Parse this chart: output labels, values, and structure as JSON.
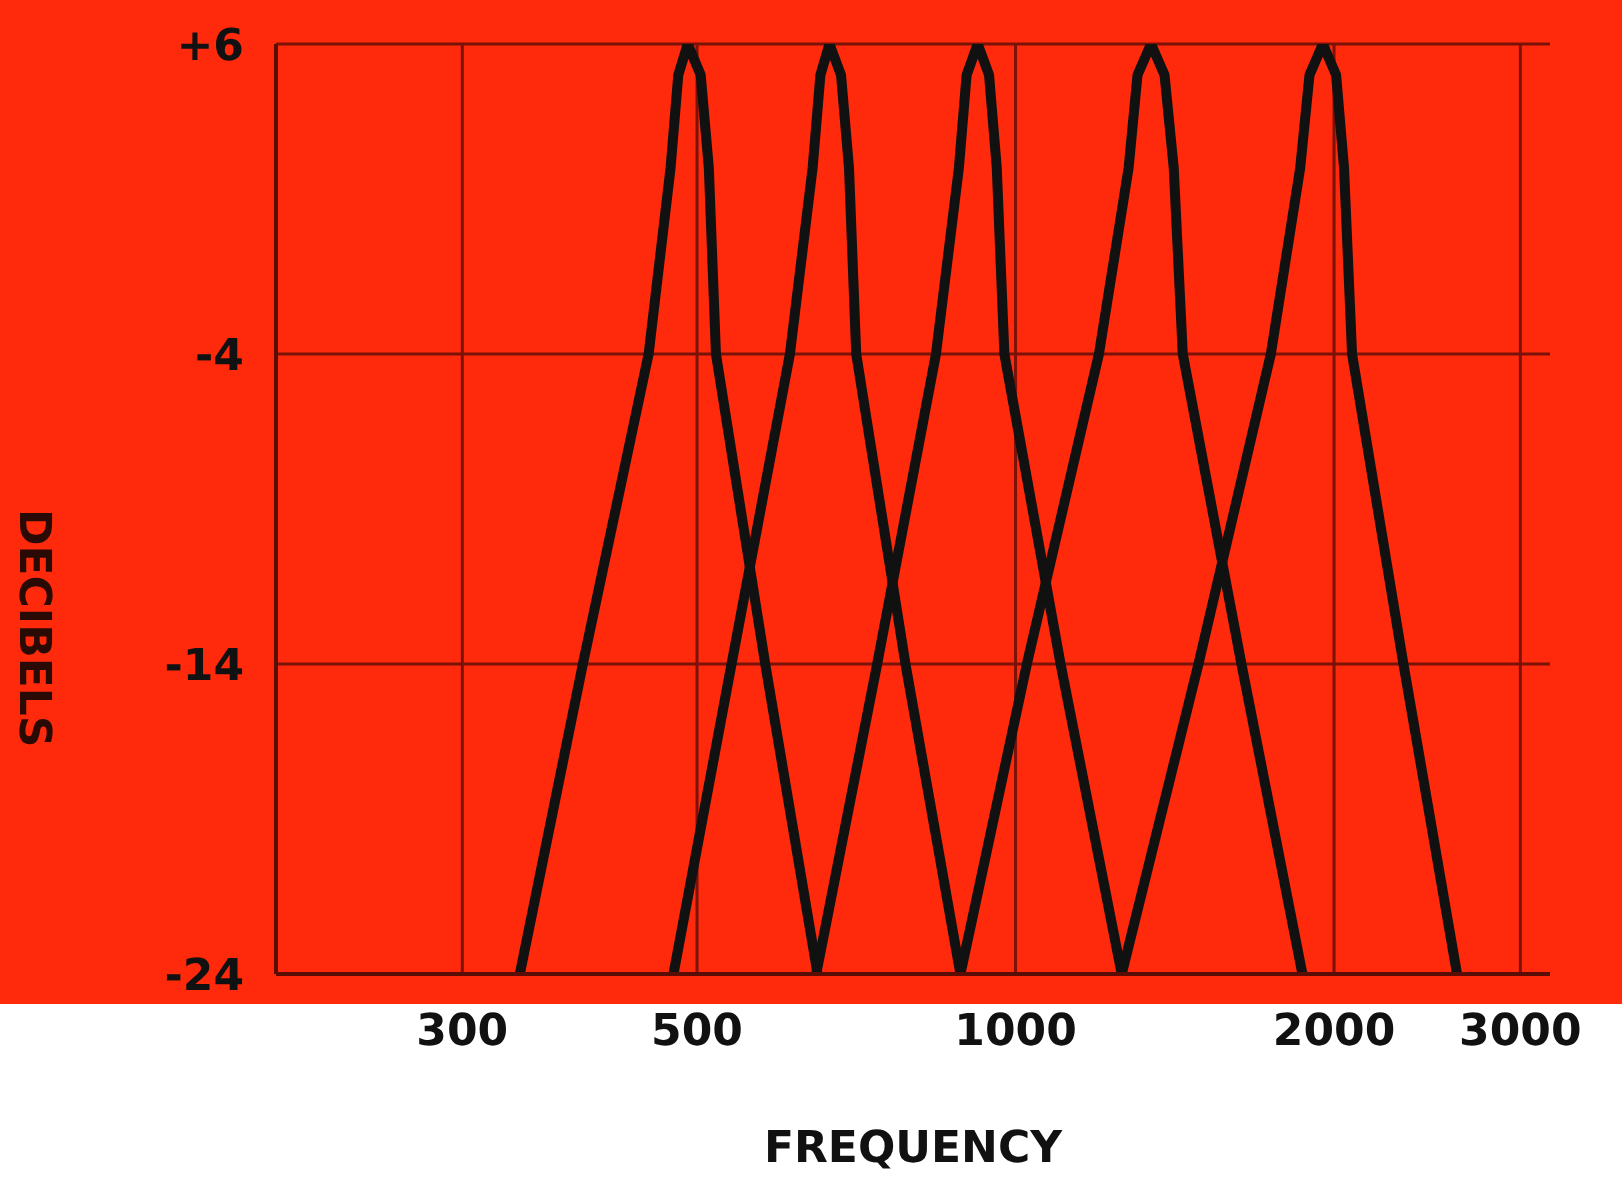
{
  "chart_data": {
    "type": "line",
    "xlabel": "FREQUENCY",
    "ylabel": "DECIBELS",
    "log": "x",
    "xlim": [
      200,
      3200
    ],
    "xticks": [
      300,
      500,
      1000,
      2000,
      3000
    ],
    "ylim": [
      -24,
      6
    ],
    "yticks": [
      -24,
      -14,
      -4,
      {
        "value": 6,
        "label": "+6"
      }
    ],
    "grid": true,
    "line_style": "solid",
    "series": [
      {
        "color": "#111111",
        "x": [
          340,
          390,
          450,
          472,
          480,
          490,
          504,
          513,
          521,
          580,
          650
        ],
        "values": [
          -24,
          -14,
          -4,
          2,
          5,
          6,
          5,
          2,
          -4,
          -14,
          -24
        ]
      },
      {
        "color": "#111111",
        "x": [
          475,
          539,
          612,
          643,
          654,
          667,
          684,
          696,
          707,
          787,
          887
        ],
        "values": [
          -24,
          -14,
          -4,
          2,
          5,
          6,
          5,
          2,
          -4,
          -14,
          -24
        ]
      },
      {
        "color": "#111111",
        "x": [
          648,
          740,
          841,
          884,
          899,
          921,
          944,
          960,
          976,
          1103,
          1260
        ],
        "values": [
          -24,
          -14,
          -4,
          2,
          5,
          6,
          5,
          2,
          -4,
          -14,
          -24
        ]
      },
      {
        "color": "#111111",
        "x": [
          887,
          1025,
          1199,
          1279,
          1304,
          1343,
          1383,
          1411,
          1439,
          1635,
          1867
        ],
        "values": [
          -24,
          -14,
          -4,
          2,
          5,
          6,
          5,
          2,
          -4,
          -14,
          -24
        ]
      },
      {
        "color": "#111111",
        "x": [
          1260,
          1489,
          1743,
          1858,
          1896,
          1952,
          2009,
          2044,
          2080,
          2326,
          2614
        ],
        "values": [
          -24,
          -14,
          -4,
          2,
          5,
          6,
          5,
          2,
          -4,
          -14,
          -24
        ]
      }
    ]
  }
}
